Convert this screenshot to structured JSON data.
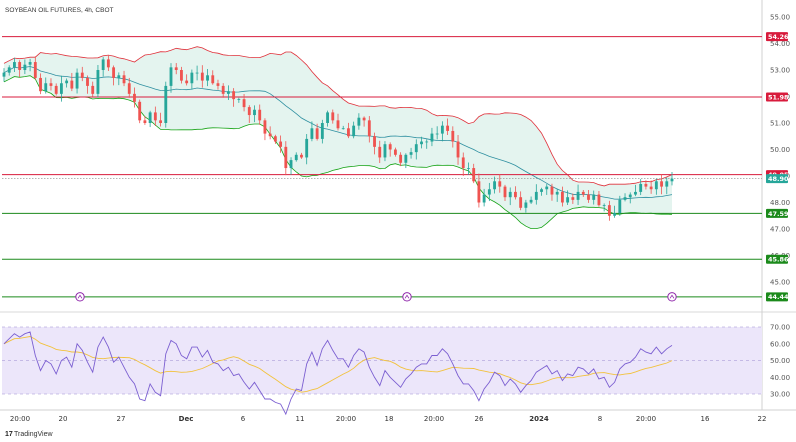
{
  "title": "SOYBEAN OIL FUTURES, 4h, CBOT",
  "brand": "TradingView",
  "colors": {
    "up": "#26a69a",
    "down": "#ef5350",
    "bb_upper": "#e0303a",
    "bb_lower": "#16a316",
    "bb_mid": "#2e8fa0",
    "bb_fill": "#e4f4ef",
    "rsi": "#7b5fd1",
    "rsi_ma": "#f2c23d",
    "rsi_fill": "#ece6fa",
    "resistance": "#d81b3c",
    "support": "#1b8a1b"
  },
  "chart_data": [
    {
      "type": "candlestick",
      "title": "SOYBEAN OIL FUTURES, 4h, CBOT",
      "ylim": [
        44.0,
        55.2
      ],
      "yticks": [
        "55.00",
        "54.00",
        "53.00",
        "52.00",
        "51.00",
        "50.00",
        "49.00",
        "48.00",
        "47.00",
        "46.00",
        "45.00"
      ],
      "x_ticks": [
        "20:00",
        "20",
        "27",
        "Dec",
        "6",
        "11",
        "20:00",
        "18",
        "20:00",
        "26",
        "2024",
        "8",
        "20:00",
        "16",
        "22"
      ],
      "horizontal_levels": [
        {
          "value": 54.26,
          "label": "54.26",
          "kind": "resistance"
        },
        {
          "value": 51.98,
          "label": "51.98",
          "kind": "resistance"
        },
        {
          "value": 49.05,
          "label": "49.05",
          "kind": "resistance"
        },
        {
          "value": 48.9,
          "label": "48.90",
          "kind": "last_price"
        },
        {
          "value": 47.59,
          "label": "47.59",
          "kind": "support"
        },
        {
          "value": 45.86,
          "label": "45.86",
          "kind": "support"
        },
        {
          "value": 44.44,
          "label": "44.44",
          "kind": "support"
        }
      ],
      "closes": [
        52.9,
        53.1,
        53.3,
        53.0,
        53.2,
        53.3,
        52.7,
        52.2,
        52.5,
        52.4,
        52.1,
        52.5,
        52.6,
        52.3,
        52.9,
        52.7,
        52.4,
        52.1,
        53.0,
        53.4,
        53.1,
        52.7,
        52.8,
        52.5,
        52.1,
        51.8,
        51.1,
        51.0,
        51.4,
        51.1,
        51.0,
        52.4,
        53.1,
        53.0,
        52.6,
        52.5,
        52.9,
        52.9,
        52.6,
        52.8,
        52.5,
        52.4,
        52.1,
        52.2,
        51.9,
        51.9,
        51.6,
        51.3,
        51.5,
        51.1,
        50.6,
        50.5,
        50.3,
        50.1,
        49.3,
        49.6,
        49.8,
        49.7,
        50.4,
        50.8,
        50.4,
        51.0,
        51.4,
        51.1,
        50.8,
        50.8,
        50.5,
        50.9,
        51.2,
        51.1,
        50.5,
        50.1,
        49.7,
        50.2,
        50.0,
        49.8,
        49.5,
        49.8,
        49.9,
        50.2,
        50.3,
        50.3,
        50.6,
        50.6,
        50.9,
        50.7,
        50.3,
        49.7,
        49.3,
        49.3,
        48.8,
        48.0,
        48.3,
        48.5,
        48.8,
        48.6,
        48.2,
        48.4,
        48.2,
        47.8,
        48.0,
        48.1,
        48.4,
        48.5,
        48.6,
        48.3,
        48.4,
        48.0,
        48.2,
        48.1,
        48.4,
        48.3,
        48.1,
        48.3,
        47.9,
        47.9,
        47.5,
        47.6,
        48.1,
        48.2,
        48.3,
        48.4,
        48.7,
        48.6,
        48.5,
        48.8,
        48.6,
        48.8,
        48.9
      ],
      "bollinger": {
        "period": 20,
        "stddev": 2
      },
      "ma": {
        "type": "SMA",
        "period": 20
      }
    },
    {
      "type": "line",
      "title": "RSI",
      "ylim": [
        25,
        75
      ],
      "yticks": [
        "70.00",
        "60.00",
        "50.00",
        "40.00",
        "30.00"
      ],
      "series": [
        {
          "name": "",
          "values": [
            60,
            63,
            66,
            64,
            66,
            67,
            53,
            44,
            50,
            48,
            42,
            50,
            52,
            46,
            60,
            56,
            49,
            43,
            58,
            64,
            58,
            49,
            52,
            46,
            40,
            36,
            27,
            26,
            36,
            31,
            29,
            54,
            62,
            60,
            53,
            51,
            58,
            58,
            52,
            56,
            49,
            48,
            44,
            46,
            41,
            42,
            37,
            33,
            37,
            32,
            27,
            27,
            25,
            24,
            18,
            27,
            33,
            32,
            48,
            55,
            47,
            57,
            62,
            56,
            51,
            51,
            46,
            53,
            57,
            55,
            46,
            40,
            35,
            44,
            40,
            37,
            34,
            39,
            42,
            46,
            48,
            48,
            53,
            53,
            57,
            54,
            48,
            41,
            36,
            36,
            32,
            26,
            33,
            37,
            43,
            41,
            35,
            39,
            36,
            31,
            35,
            38,
            43,
            45,
            47,
            42,
            44,
            38,
            42,
            41,
            46,
            45,
            42,
            45,
            39,
            40,
            34,
            37,
            45,
            48,
            49,
            52,
            57,
            55,
            54,
            58,
            54,
            57,
            59
          ]
        }
      ]
    }
  ]
}
